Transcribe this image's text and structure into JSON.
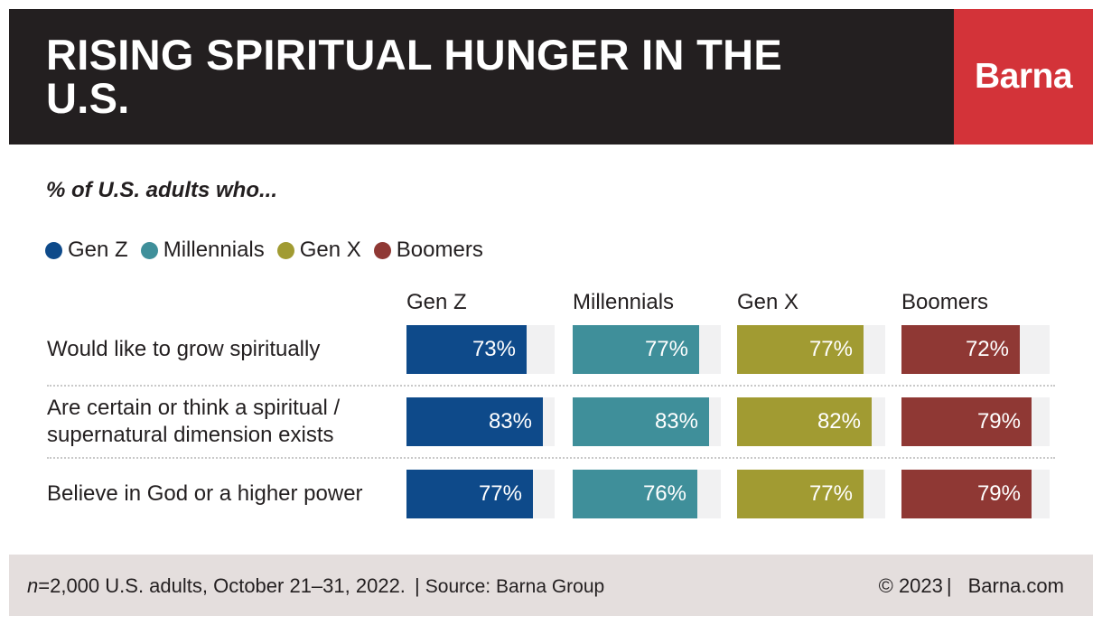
{
  "header": {
    "title": "RISING SPIRITUAL HUNGER IN THE U.S.",
    "logo": "Barna",
    "logo_color": "#d33339",
    "background_color": "#231f20"
  },
  "subtitle": "% of U.S. adults who...",
  "legend": [
    {
      "label": "Gen Z",
      "color": "#0e4a8a"
    },
    {
      "label": "Millennials",
      "color": "#3f8f9a"
    },
    {
      "label": "Gen X",
      "color": "#a19b32"
    },
    {
      "label": "Boomers",
      "color": "#8f3834"
    }
  ],
  "chart_data": {
    "type": "bar",
    "title": "RISING SPIRITUAL HUNGER IN THE U.S.",
    "subtitle": "% of U.S. adults who...",
    "categories": [
      "Would like to grow spiritually",
      "Are certain or think a spiritual / supernatural dimension exists",
      "Believe in God or a higher power"
    ],
    "category_lines": [
      [
        "Would like to grow spiritually"
      ],
      [
        "Are certain or think a spiritual /",
        "supernatural dimension exists"
      ],
      [
        "Believe in God or a higher power"
      ]
    ],
    "series": [
      {
        "name": "Gen Z",
        "color": "#0e4a8a",
        "values": [
          73,
          83,
          77
        ],
        "labels": [
          "73%",
          "83%",
          "77%"
        ]
      },
      {
        "name": "Millennials",
        "color": "#3f8f9a",
        "values": [
          77,
          83,
          76
        ],
        "labels": [
          "77%",
          "83%",
          "76%"
        ]
      },
      {
        "name": "Gen X",
        "color": "#a19b32",
        "values": [
          77,
          82,
          77
        ],
        "labels": [
          "77%",
          "82%",
          "77%"
        ]
      },
      {
        "name": "Boomers",
        "color": "#8f3834",
        "values": [
          72,
          79,
          79
        ],
        "labels": [
          "72%",
          "79%",
          "79%"
        ]
      }
    ],
    "ylim": [
      0,
      90
    ],
    "unit": "%",
    "legend_position": "top-left"
  },
  "footer": {
    "n_label": "n",
    "sample_note": "=2,000 U.S. adults, October 21–31, 2022.",
    "sep": "|",
    "source": "Source: Barna Group",
    "copyright": "© 2023",
    "website": "Barna.com"
  }
}
